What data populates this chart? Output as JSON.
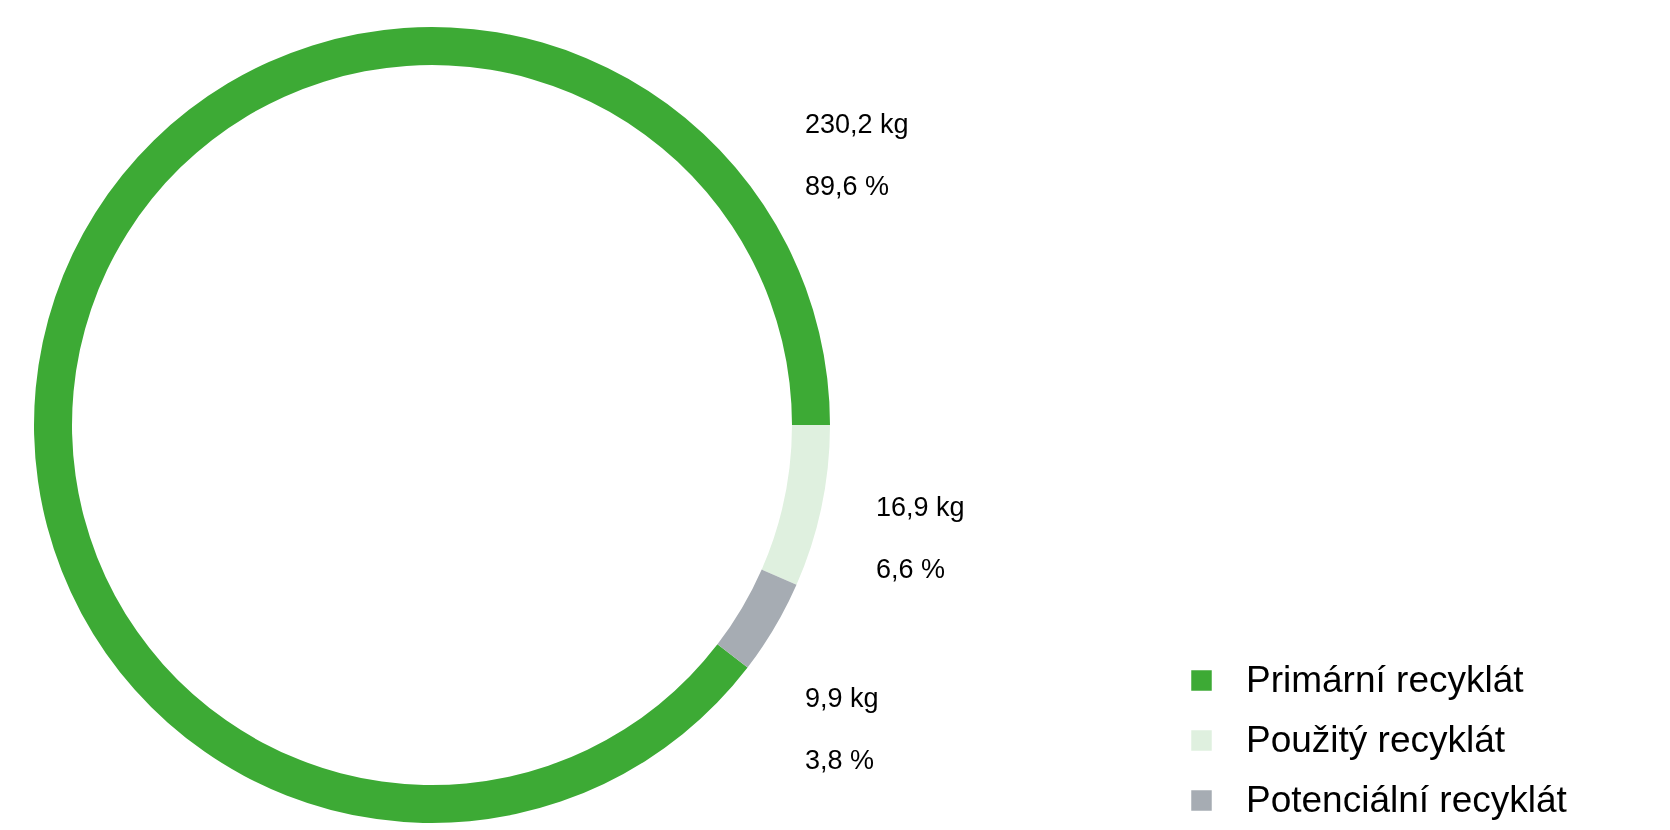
{
  "chart_data": {
    "type": "donut",
    "categories": [
      "Primární recyklát",
      "Použitý recyklát",
      "Potenciální recyklát"
    ],
    "values": [
      230.2,
      16.9,
      9.9
    ],
    "colors": [
      "#3daa35",
      "#dff0df",
      "#a6acb3"
    ],
    "value_labels": [
      "230,2 kg",
      "16,9 kg",
      "9,9 kg"
    ],
    "annotations": [
      "89,6 %",
      "6,6 %",
      "3,8 %"
    ],
    "legend": "bottom right"
  }
}
